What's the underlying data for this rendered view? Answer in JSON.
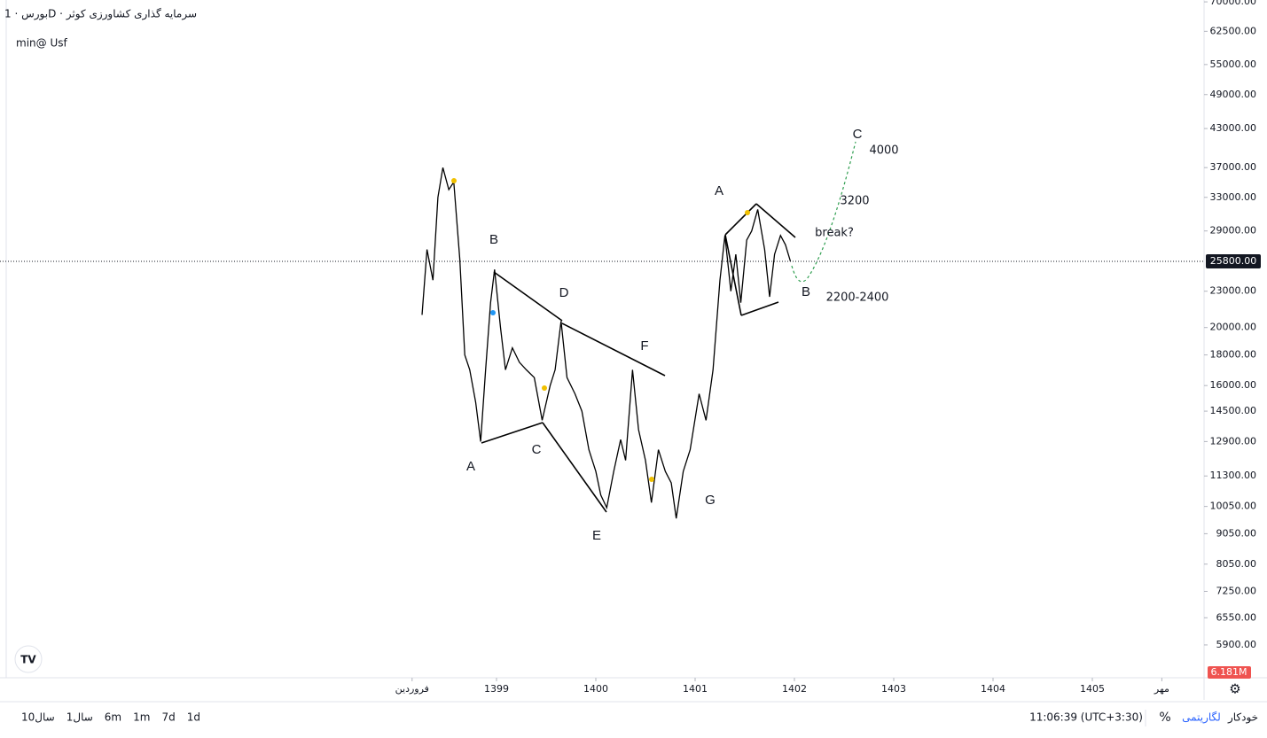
{
  "header": {
    "symbol_line": "بورس · 1D · سرمایه گذاری کشاورزی کوثر",
    "indicator": "min@ Usf"
  },
  "chart_data": {
    "type": "line",
    "log_scale": true,
    "color": "#000000",
    "x": [
      1398.25,
      1398.3,
      1398.36,
      1398.41,
      1398.46,
      1398.52,
      1398.57,
      1398.63,
      1398.68,
      1398.73,
      1398.79,
      1398.84,
      1398.89,
      1398.94,
      1398.98,
      1399.04,
      1399.09,
      1399.16,
      1399.23,
      1399.3,
      1399.38,
      1399.46,
      1399.54,
      1399.59,
      1399.65,
      1399.71,
      1399.79,
      1399.86,
      1399.93,
      1400.0,
      1400.05,
      1400.11,
      1400.18,
      1400.25,
      1400.3,
      1400.37,
      1400.43,
      1400.5,
      1400.56,
      1400.63,
      1400.7,
      1400.76,
      1400.81,
      1400.88,
      1400.95,
      1401.04,
      1401.11,
      1401.18,
      1401.25,
      1401.3,
      1401.36,
      1401.41,
      1401.46,
      1401.52,
      1401.57,
      1401.63,
      1401.7,
      1401.75,
      1401.8,
      1401.86,
      1401.91,
      1401.96
    ],
    "values": [
      21000,
      27000,
      24000,
      33000,
      37000,
      34000,
      35000,
      26000,
      18000,
      17000,
      15000,
      12900,
      17000,
      22000,
      25000,
      20000,
      17000,
      18500,
      17500,
      17000,
      16500,
      14000,
      16000,
      17000,
      20500,
      16500,
      15500,
      14500,
      12500,
      11500,
      10500,
      10000,
      11500,
      13000,
      12000,
      17000,
      13500,
      12000,
      10200,
      12500,
      11500,
      11000,
      9600,
      11500,
      12500,
      15500,
      14000,
      17000,
      24000,
      28500,
      23000,
      26500,
      22000,
      28000,
      29000,
      31500,
      27000,
      22500,
      26500,
      28500,
      27500,
      25800
    ],
    "xlim": [
      1394,
      1406.125
    ],
    "ylim": [
      5200,
      70500
    ],
    "yticks": [
      {
        "value": 70000,
        "label": "70000.00"
      },
      {
        "value": 62500,
        "label": "62500.00"
      },
      {
        "value": 55000,
        "label": "55000.00"
      },
      {
        "value": 49000,
        "label": "49000.00"
      },
      {
        "value": 43000,
        "label": "43000.00"
      },
      {
        "value": 37000,
        "label": "37000.00"
      },
      {
        "value": 33000,
        "label": "33000.00"
      },
      {
        "value": 29000,
        "label": "29000.00"
      },
      {
        "value": 23000,
        "label": "23000.00"
      },
      {
        "value": 20000,
        "label": "20000.00"
      },
      {
        "value": 18000,
        "label": "18000.00"
      },
      {
        "value": 16000,
        "label": "16000.00"
      },
      {
        "value": 14500,
        "label": "14500.00"
      },
      {
        "value": 12900,
        "label": "12900.00"
      },
      {
        "value": 11300,
        "label": "11300.00"
      },
      {
        "value": 10050,
        "label": "10050.00"
      },
      {
        "value": 9050,
        "label": "9050.00"
      },
      {
        "value": 8050,
        "label": "8050.00"
      },
      {
        "value": 7250,
        "label": "7250.00"
      },
      {
        "value": 6550,
        "label": "6550.00"
      },
      {
        "value": 5900,
        "label": "5900.00"
      }
    ],
    "xticks": [
      {
        "value": 1398.15,
        "label": "فروردین"
      },
      1399,
      1400,
      1401,
      1402,
      1403,
      1404,
      1405,
      {
        "value": 1405.7,
        "label": "مهر"
      }
    ],
    "last_price": {
      "value": 25800,
      "label": "25800.00"
    },
    "volume_label": "6.181M",
    "annotations": [
      "A",
      "B",
      "D",
      "F",
      "A",
      "C",
      "E",
      "G",
      "C",
      "4000",
      "3200",
      "break?",
      "B",
      "2200-2400"
    ]
  },
  "toolbar": {
    "ranges": [
      "10سال",
      "1سال",
      "6m",
      "1m",
      "7d",
      "1d"
    ],
    "clock": "11:06:39 (UTC+3:30)",
    "percent": "%",
    "log": "لگاریتمی",
    "auto": "خودکار"
  }
}
